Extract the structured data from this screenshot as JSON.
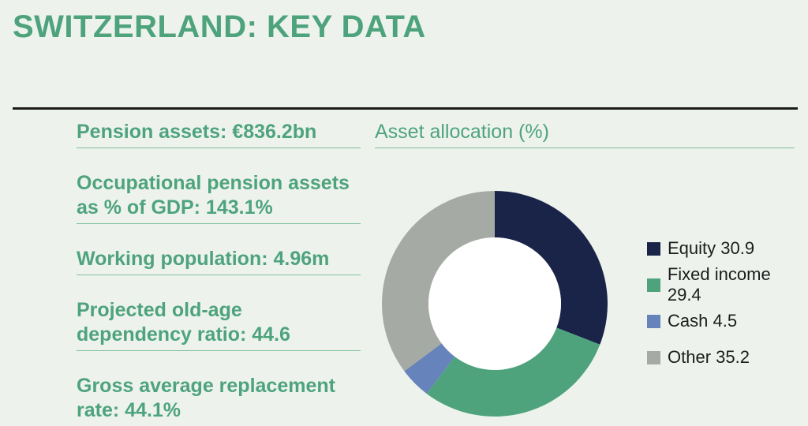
{
  "title": "SWITZERLAND: KEY DATA",
  "facts": [
    "Pension assets: €836.2bn",
    "Occupational pension assets as % of GDP: 143.1%",
    "Working population: 4.96m",
    "Projected old-age dependency ratio: 44.6",
    "Gross average replacement rate: 44.1%"
  ],
  "chart_data": {
    "type": "pie",
    "variant": "donut",
    "title": "Asset allocation (%)",
    "categories": [
      "Equity",
      "Fixed income",
      "Cash",
      "Other"
    ],
    "values": [
      30.9,
      29.4,
      4.5,
      35.2
    ],
    "colors": [
      "#1a2449",
      "#4ea37d",
      "#6683bb",
      "#a5aba4"
    ],
    "legend_labels": [
      "Equity 30.9",
      "Fixed income 29.4",
      "Cash 4.5",
      "Other 35.2"
    ],
    "legend": "right"
  }
}
